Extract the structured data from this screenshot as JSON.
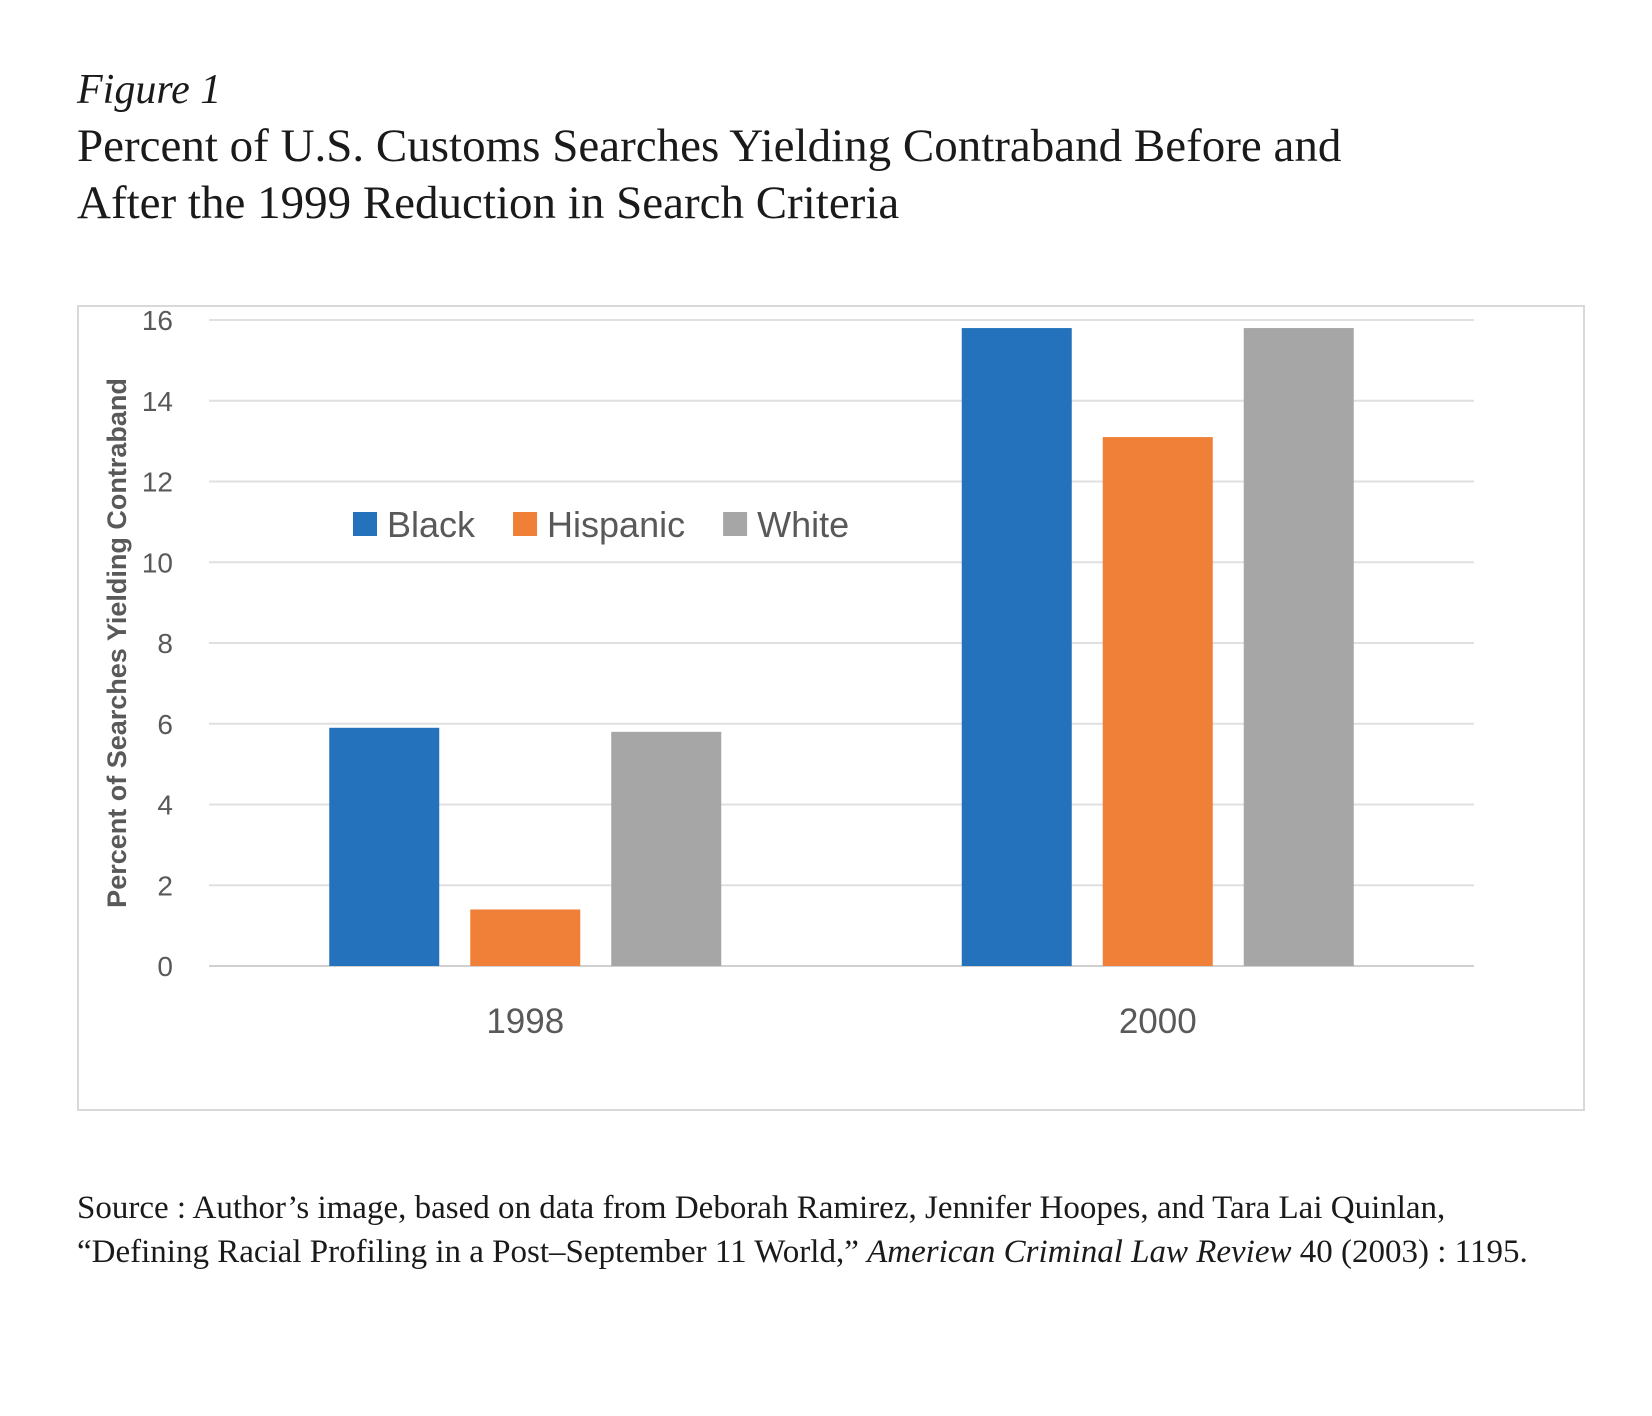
{
  "figure": {
    "label": "Figure 1",
    "title_line1": "Percent of U.S. Customs Searches Yielding Contraband Before and",
    "title_line2": "After the 1999 Reduction in Search Criteria"
  },
  "source": {
    "prefix": "Source : Author’s image, based on data from Deborah Ramirez, Jennifer Hoopes, and Tara Lai Quinlan, “Defining Racial Profiling in a Post–September 11 World,” ",
    "journal": "American Criminal Law Review",
    "suffix": " 40 (2003) : 1195."
  },
  "chart_data": {
    "type": "bar",
    "title": "",
    "xlabel": "",
    "ylabel": "Percent of Searches Yielding Contraband",
    "categories": [
      "1998",
      "2000"
    ],
    "ylim": [
      0,
      16
    ],
    "yticks": [
      0,
      2,
      4,
      6,
      8,
      10,
      12,
      14,
      16
    ],
    "grid": true,
    "legend_position": "top-left",
    "series": [
      {
        "name": "Black",
        "color": "#2372bb",
        "values": [
          5.9,
          15.8
        ]
      },
      {
        "name": "Hispanic",
        "color": "#f07f38",
        "values": [
          1.4,
          13.1
        ]
      },
      {
        "name": "White",
        "color": "#a6a6a6",
        "values": [
          5.8,
          15.8
        ]
      }
    ]
  }
}
